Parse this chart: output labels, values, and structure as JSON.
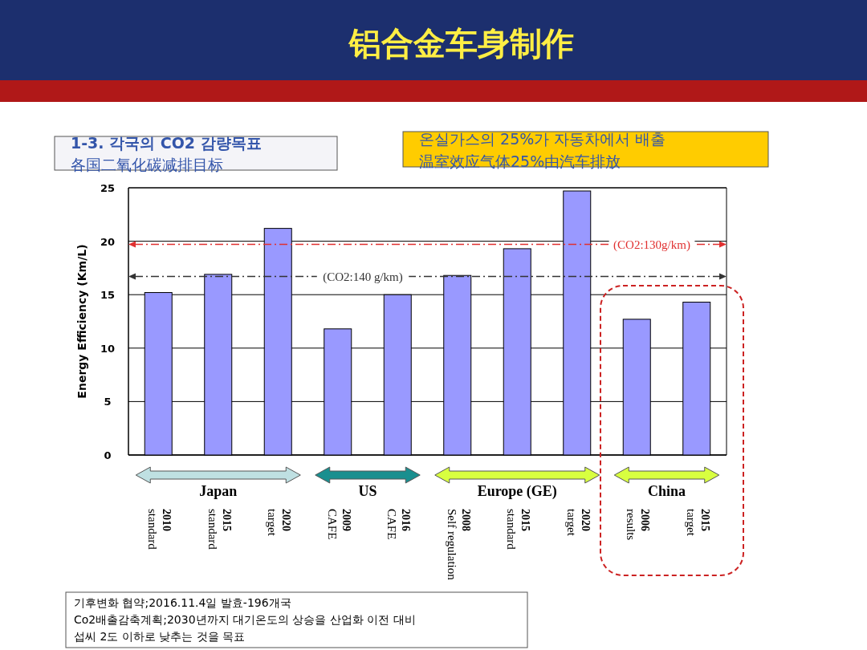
{
  "chart_data": {
    "type": "bar",
    "title": "铝合金车身制作",
    "ylabel": "Energy Efficiency (Km/L)",
    "categories": [
      "2010 standard",
      "2015 standard",
      "2020 target",
      "2009 CAFE",
      "2016 CAFE",
      "2008 Self regulation",
      "2015 standard",
      "2020 target",
      "2006 results",
      "2015 target"
    ],
    "values": [
      15.2,
      16.9,
      21.2,
      11.8,
      15.0,
      16.8,
      19.3,
      24.7,
      12.7,
      14.3
    ],
    "color": "#9999ff",
    "ylim": [
      0,
      25
    ],
    "yticks": [
      0,
      5,
      10,
      15,
      20,
      25
    ],
    "grid": "y",
    "ref_lines": [
      {
        "axis": "y",
        "value": 19.7,
        "color": "#e03030",
        "line_style": "dashed"
      },
      {
        "axis": "y",
        "value": 16.7,
        "color": "#333333",
        "line_style": "dashed"
      }
    ],
    "annotations": [
      "1-3. 각국의 CO2 감량목표",
      "各国二氧化碳减排目标",
      "온실가스의 25%가 자동차에서 배출",
      "温室效应气体25%由汽车排放",
      "Japan",
      "US",
      "Europe (GE)",
      "China",
      "기후변화 협약;2016.11.4일 발효-196개국",
      "Co2배출감축계획;2030년까지 대기온도의 상승을 산업화 이전 대비",
      "섭씨 2도 이하로 낮추는 것을 목표",
      "(CO2:130g/km)",
      "(CO2:140 g/km)"
    ]
  }
}
